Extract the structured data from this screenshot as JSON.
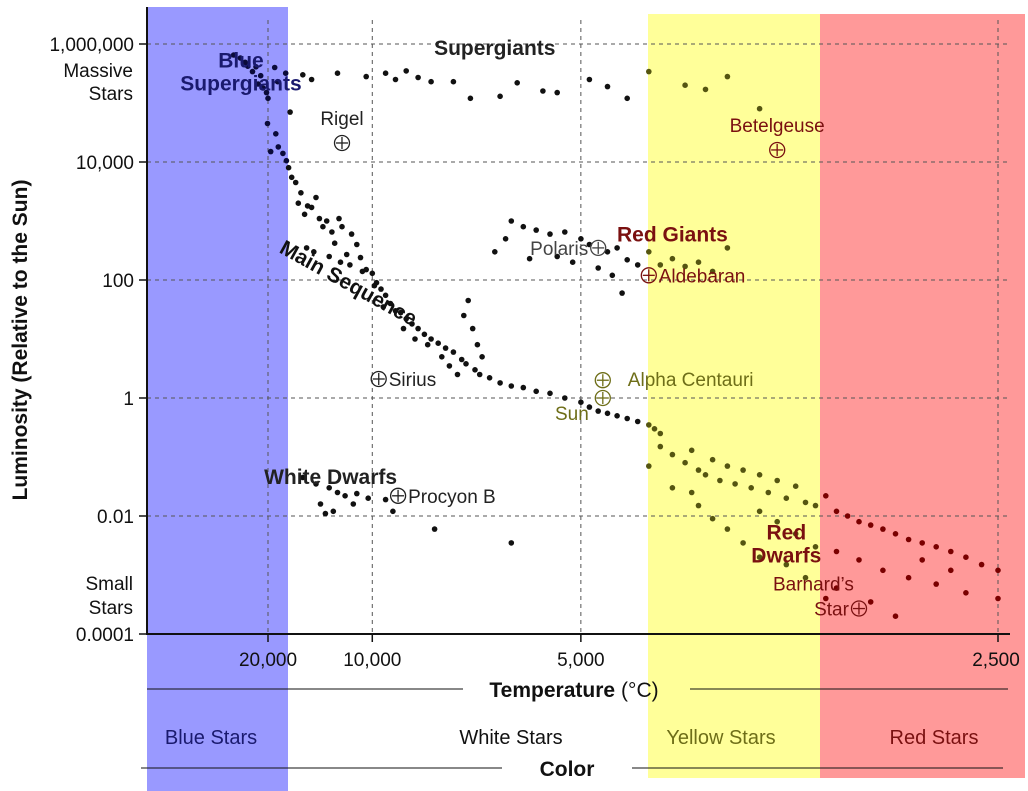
{
  "chart_data": {
    "type": "scatter",
    "title": "",
    "xlabel": "Temperature",
    "xlabel_unit": "(°C)",
    "ylabel": "Luminosity (Relative to the Sun)",
    "y_scale": "log",
    "x_scale": "reciprocal",
    "xlim": [
      40000,
      2350
    ],
    "ylim": [
      0.0001,
      3000000
    ],
    "grid": true,
    "x_ticks": [
      "20,000",
      "10,000",
      "5,000",
      "2,500"
    ],
    "y_ticks": [
      "1,000,000",
      "10,000",
      "100",
      "1",
      "0.01",
      "0.0001"
    ],
    "y_side_notes": {
      "top": [
        "Massive",
        "Stars"
      ],
      "bottom": [
        "Small",
        "Stars"
      ]
    },
    "color_axis": {
      "title": "Color",
      "bands": [
        {
          "label": "Blue Stars",
          "color": "#9999ff",
          "range_temp": [
            40000,
            19000
          ]
        },
        {
          "label": "White Stars",
          "color": "#ffffff",
          "range_temp": [
            19000,
            6700
          ]
        },
        {
          "label": "Yellow Stars",
          "color": "#ffff99",
          "range_temp": [
            6700,
            4200
          ]
        },
        {
          "label": "Red Stars",
          "color": "#ff9999",
          "range_temp": [
            4200,
            2350
          ]
        }
      ]
    },
    "regions": [
      {
        "label_lines": [
          "Blue",
          "Supergiants"
        ],
        "color": "#1a1a6e",
        "temp": 27000,
        "lum": 400000
      },
      {
        "label_lines": [
          "Supergiants"
        ],
        "color": "#222222",
        "temp": 6300,
        "lum": 650000
      },
      {
        "label_lines": [
          "Red Giants"
        ],
        "color": "#7a1010",
        "temp": 4100,
        "lum": 450
      },
      {
        "label_lines": [
          "White Dwarfs"
        ],
        "color": "#222222",
        "temp": 12500,
        "lum": 0.035
      },
      {
        "label_lines": [
          "Red",
          "Dwarfs"
        ],
        "color": "#7a1010",
        "temp": 3350,
        "lum": 0.004
      }
    ],
    "main_sequence_label": {
      "text": "Main Sequence",
      "temp": 11500,
      "lum": 70,
      "angle": 29
    },
    "named_stars": [
      {
        "name": "Rigel",
        "temp": 11700,
        "lum": 21000,
        "color": "#222222",
        "label_side": "above"
      },
      {
        "name": "Betelgeuse",
        "temp": 3400,
        "lum": 16000,
        "color": "#7a1010",
        "label_side": "above"
      },
      {
        "name": "Polaris",
        "temp": 4800,
        "lum": 350,
        "color": "#444444",
        "label_side": "left"
      },
      {
        "name": "Aldebaran",
        "temp": 4300,
        "lum": 120,
        "color": "#7a1010",
        "label_side": "right"
      },
      {
        "name": "Sirius",
        "temp": 9700,
        "lum": 2.1,
        "color": "#222222",
        "label_side": "right"
      },
      {
        "name": "Alpha Centauri",
        "temp": 4750,
        "lum": 2,
        "color": "#6e6e18",
        "label_side": "right-far"
      },
      {
        "name": "Sun",
        "temp": 4750,
        "lum": 1,
        "color": "#6e6e18",
        "label_side": "below-left"
      },
      {
        "name": "Procyon B",
        "temp": 8900,
        "lum": 0.022,
        "color": "#222222",
        "label_side": "right"
      },
      {
        "name": "Barnard's Star",
        "temp": 3000,
        "lum": 0.00027,
        "color": "#7a1010",
        "label_side": "left-two-line",
        "label_lines": [
          "Barnard’s",
          "Star"
        ]
      }
    ],
    "dot_groups": [
      {
        "name": "supergiants",
        "points": [
          [
            29800,
            650000
          ],
          [
            27200,
            580000
          ],
          [
            25600,
            490000
          ],
          [
            24800,
            420000
          ],
          [
            22600,
            410000
          ],
          [
            23500,
            340000
          ],
          [
            21500,
            290000
          ],
          [
            22100,
            210000
          ],
          [
            21000,
            180000
          ],
          [
            20300,
            150000
          ],
          [
            20000,
            120000
          ],
          [
            18800,
            400000
          ],
          [
            18300,
            230000
          ],
          [
            17100,
            320000
          ],
          [
            16500,
            70000
          ],
          [
            15000,
            300000
          ],
          [
            14100,
            250000
          ],
          [
            12000,
            320000
          ],
          [
            10300,
            280000
          ],
          [
            9400,
            320000
          ],
          [
            9000,
            250000
          ],
          [
            8600,
            350000
          ],
          [
            8200,
            270000
          ],
          [
            7800,
            230000
          ],
          [
            7200,
            230000
          ],
          [
            6800,
            120000
          ],
          [
            6200,
            130000
          ],
          [
            5900,
            220000
          ],
          [
            5500,
            160000
          ],
          [
            5300,
            150000
          ],
          [
            4900,
            250000
          ],
          [
            4700,
            190000
          ],
          [
            4500,
            120000
          ],
          [
            4300,
            340000
          ],
          [
            4000,
            200000
          ],
          [
            3850,
            170000
          ],
          [
            3700,
            280000
          ],
          [
            3500,
            80000
          ]
        ]
      },
      {
        "name": "main-sequence",
        "points": [
          [
            20100,
            45000
          ],
          [
            18600,
            30000
          ],
          [
            19500,
            15000
          ],
          [
            18200,
            18000
          ],
          [
            17500,
            14000
          ],
          [
            17000,
            10500
          ],
          [
            16700,
            8000
          ],
          [
            16300,
            5500
          ],
          [
            15800,
            4500
          ],
          [
            15500,
            2000
          ],
          [
            15200,
            3000
          ],
          [
            14800,
            1300
          ],
          [
            14500,
            1800
          ],
          [
            14100,
            1700
          ],
          [
            13700,
            2500
          ],
          [
            13400,
            1100
          ],
          [
            13100,
            800
          ],
          [
            12800,
            1000
          ],
          [
            12400,
            650
          ],
          [
            12200,
            420
          ],
          [
            11900,
            1100
          ],
          [
            11700,
            800
          ],
          [
            11400,
            270
          ],
          [
            11100,
            600
          ],
          [
            10800,
            400
          ],
          [
            10600,
            240
          ],
          [
            10300,
            150
          ],
          [
            10000,
            130
          ],
          [
            9800,
            90
          ],
          [
            9600,
            70
          ],
          [
            9400,
            55
          ],
          [
            9200,
            40
          ],
          [
            9000,
            30
          ],
          [
            8800,
            28
          ],
          [
            8600,
            22
          ],
          [
            8400,
            18
          ],
          [
            8200,
            15
          ],
          [
            8000,
            12
          ],
          [
            7800,
            10
          ],
          [
            7600,
            8.5
          ],
          [
            7400,
            7
          ],
          [
            7200,
            6
          ],
          [
            7000,
            4.5
          ],
          [
            6900,
            3.8
          ],
          [
            6700,
            3
          ],
          [
            6600,
            2.5
          ],
          [
            6400,
            2.2
          ],
          [
            6200,
            1.8
          ],
          [
            6000,
            1.6
          ],
          [
            5800,
            1.5
          ],
          [
            5600,
            1.3
          ],
          [
            5400,
            1.2
          ],
          [
            5200,
            1.0
          ],
          [
            5000,
            0.85
          ],
          [
            4900,
            0.7
          ],
          [
            4800,
            0.6
          ],
          [
            4700,
            0.55
          ],
          [
            4600,
            0.5
          ],
          [
            4500,
            0.45
          ],
          [
            4400,
            0.4
          ],
          [
            4300,
            0.35
          ],
          [
            4250,
            0.3
          ],
          [
            4200,
            0.25
          ],
          [
            14600,
            350
          ],
          [
            13900,
            300
          ],
          [
            12600,
            250
          ],
          [
            11800,
            200
          ],
          [
            11200,
            180
          ],
          [
            10500,
            140
          ],
          [
            9900,
            80
          ],
          [
            9500,
            35
          ],
          [
            8700,
            15
          ],
          [
            8300,
            10
          ],
          [
            7900,
            8
          ],
          [
            7500,
            5
          ],
          [
            7300,
            3.5
          ],
          [
            7100,
            2.5
          ],
          [
            6950,
            25
          ],
          [
            6850,
            45
          ],
          [
            6750,
            15
          ],
          [
            6650,
            8
          ],
          [
            6550,
            5
          ]
        ]
      },
      {
        "name": "red-giants",
        "points": [
          [
            6300,
            300
          ],
          [
            6100,
            500
          ],
          [
            6000,
            1000
          ],
          [
            5800,
            800
          ],
          [
            5600,
            700
          ],
          [
            5400,
            600
          ],
          [
            5200,
            650
          ],
          [
            5000,
            500
          ],
          [
            4900,
            400
          ],
          [
            4700,
            300
          ],
          [
            4600,
            350
          ],
          [
            4500,
            220
          ],
          [
            4400,
            180
          ],
          [
            4300,
            300
          ],
          [
            4200,
            180
          ],
          [
            4100,
            230
          ],
          [
            4000,
            170
          ],
          [
            3900,
            200
          ],
          [
            3800,
            140
          ],
          [
            3700,
            350
          ],
          [
            5700,
            230
          ],
          [
            5300,
            250
          ],
          [
            5100,
            200
          ],
          [
            4800,
            160
          ],
          [
            4650,
            120
          ],
          [
            4550,
            60
          ]
        ]
      },
      {
        "name": "white-dwarfs",
        "points": [
          [
            15000,
            0.045
          ],
          [
            13700,
            0.035
          ],
          [
            13300,
            0.016
          ],
          [
            12900,
            0.011
          ],
          [
            12600,
            0.03
          ],
          [
            12300,
            0.012
          ],
          [
            12000,
            0.025
          ],
          [
            11500,
            0.022
          ],
          [
            11000,
            0.016
          ],
          [
            10800,
            0.024
          ],
          [
            10200,
            0.02
          ],
          [
            9400,
            0.019
          ],
          [
            9100,
            0.012
          ],
          [
            7700,
            0.006
          ],
          [
            6000,
            0.0035
          ]
        ]
      },
      {
        "name": "red-dwarfs",
        "points": [
          [
            4200,
            0.15
          ],
          [
            4100,
            0.11
          ],
          [
            4000,
            0.08
          ],
          [
            3950,
            0.13
          ],
          [
            3900,
            0.06
          ],
          [
            3850,
            0.05
          ],
          [
            3800,
            0.09
          ],
          [
            3750,
            0.04
          ],
          [
            3700,
            0.07
          ],
          [
            3650,
            0.035
          ],
          [
            3600,
            0.06
          ],
          [
            3550,
            0.03
          ],
          [
            3500,
            0.05
          ],
          [
            3450,
            0.025
          ],
          [
            3400,
            0.04
          ],
          [
            3350,
            0.02
          ],
          [
            3300,
            0.032
          ],
          [
            3250,
            0.017
          ],
          [
            3200,
            0.015
          ],
          [
            3150,
            0.022
          ],
          [
            3100,
            0.012
          ],
          [
            3050,
            0.01
          ],
          [
            3000,
            0.008
          ],
          [
            2950,
            0.007
          ],
          [
            2900,
            0.006
          ],
          [
            2850,
            0.005
          ],
          [
            2800,
            0.004
          ],
          [
            2750,
            0.0035
          ],
          [
            2700,
            0.003
          ],
          [
            2650,
            0.0025
          ],
          [
            2600,
            0.002
          ],
          [
            2550,
            0.0015
          ],
          [
            2500,
            0.0012
          ],
          [
            3900,
            0.015
          ],
          [
            3800,
            0.009
          ],
          [
            3700,
            0.006
          ],
          [
            3600,
            0.0035
          ],
          [
            3500,
            0.012
          ],
          [
            3400,
            0.008
          ],
          [
            3300,
            0.005
          ],
          [
            3200,
            0.003
          ],
          [
            3100,
            0.0025
          ],
          [
            3000,
            0.0018
          ],
          [
            2900,
            0.0012
          ],
          [
            2800,
            0.0009
          ],
          [
            2700,
            0.0007
          ],
          [
            2600,
            0.0005
          ],
          [
            2500,
            0.0004
          ],
          [
            2450,
            0.0003
          ],
          [
            3100,
            0.0006
          ],
          [
            2950,
            0.00035
          ],
          [
            2850,
            0.0002
          ],
          [
            3500,
            0.002
          ],
          [
            3350,
            0.0015
          ],
          [
            3250,
            0.0009
          ],
          [
            3150,
            0.0004
          ],
          [
            4300,
            0.07
          ],
          [
            4100,
            0.03
          ],
          [
            3950,
            0.025
          ],
          [
            2750,
            0.0018
          ],
          [
            2650,
            0.0012
          ]
        ]
      }
    ]
  }
}
